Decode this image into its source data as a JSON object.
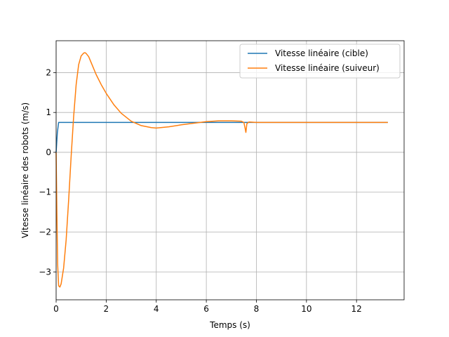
{
  "chart_data": {
    "type": "line",
    "title": "",
    "xlabel": "Temps (s)",
    "ylabel": "Vitesse linéaire des robots (m/s)",
    "xlim": [
      0,
      13.9
    ],
    "ylim": [
      -3.7,
      2.8
    ],
    "xticks": [
      0,
      2,
      4,
      6,
      8,
      10,
      12
    ],
    "yticks": [
      -3,
      -2,
      -1,
      0,
      1,
      2
    ],
    "grid": true,
    "legend_position": "upper-right",
    "series": [
      {
        "name": "Vitesse linéaire (cible)",
        "color": "#1f77b4",
        "x": [
          0,
          0.05,
          0.1,
          0.15,
          1,
          3,
          5,
          7,
          7.5,
          7.55,
          7.6,
          7.65,
          8,
          10,
          12,
          13.25
        ],
        "y": [
          0,
          0.5,
          0.75,
          0.75,
          0.75,
          0.75,
          0.75,
          0.75,
          0.75,
          0.75,
          0.75,
          0.75,
          0.75,
          0.75,
          0.75,
          0.75
        ]
      },
      {
        "name": "Vitesse linéaire (suiveur)",
        "color": "#ff7f0e",
        "x": [
          0,
          0.03,
          0.06,
          0.1,
          0.15,
          0.2,
          0.3,
          0.4,
          0.5,
          0.6,
          0.7,
          0.8,
          0.9,
          1.0,
          1.1,
          1.15,
          1.2,
          1.3,
          1.4,
          1.6,
          1.8,
          2.0,
          2.3,
          2.6,
          3.0,
          3.4,
          3.8,
          4.0,
          4.5,
          5.0,
          5.5,
          6.0,
          6.5,
          7.0,
          7.4,
          7.5,
          7.55,
          7.58,
          7.62,
          7.7,
          8.0,
          9.0,
          10.0,
          11.0,
          12.0,
          13.25
        ],
        "y": [
          0,
          -1.5,
          -2.8,
          -3.35,
          -3.38,
          -3.3,
          -2.9,
          -2.2,
          -1.2,
          -0.1,
          0.9,
          1.7,
          2.2,
          2.42,
          2.49,
          2.5,
          2.48,
          2.4,
          2.25,
          1.95,
          1.7,
          1.48,
          1.2,
          0.98,
          0.78,
          0.67,
          0.62,
          0.61,
          0.64,
          0.69,
          0.73,
          0.77,
          0.79,
          0.79,
          0.78,
          0.75,
          0.6,
          0.5,
          0.72,
          0.76,
          0.75,
          0.75,
          0.75,
          0.75,
          0.75,
          0.75
        ]
      }
    ]
  }
}
